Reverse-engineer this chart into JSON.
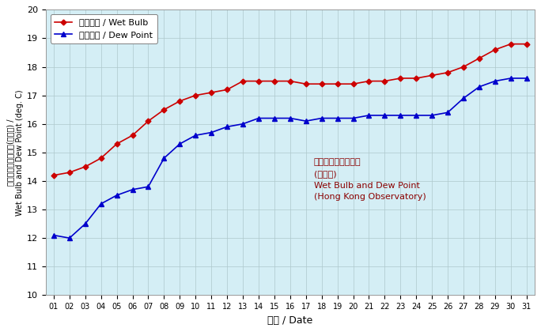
{
  "days": [
    1,
    2,
    3,
    4,
    5,
    6,
    7,
    8,
    9,
    10,
    11,
    12,
    13,
    14,
    15,
    16,
    17,
    18,
    19,
    20,
    21,
    22,
    23,
    24,
    25,
    26,
    27,
    28,
    29,
    30,
    31
  ],
  "wet_bulb": [
    14.2,
    14.3,
    14.5,
    14.8,
    15.3,
    15.6,
    16.1,
    16.5,
    16.8,
    17.0,
    17.1,
    17.2,
    17.5,
    17.5,
    17.5,
    17.5,
    17.4,
    17.4,
    17.4,
    17.4,
    17.5,
    17.5,
    17.6,
    17.6,
    17.7,
    17.8,
    18.0,
    18.3,
    18.6,
    18.8,
    18.8
  ],
  "dew_point": [
    12.1,
    12.0,
    12.5,
    13.2,
    13.5,
    13.7,
    13.8,
    14.8,
    15.3,
    15.6,
    15.7,
    15.9,
    16.0,
    16.2,
    16.2,
    16.2,
    16.1,
    16.2,
    16.2,
    16.2,
    16.3,
    16.3,
    16.3,
    16.3,
    16.3,
    16.4,
    16.9,
    17.3,
    17.5,
    17.6,
    17.6
  ],
  "wet_bulb_color": "#cc0000",
  "dew_point_color": "#0000cc",
  "plot_bg_color": "#d4eef5",
  "outer_bg_color": "#ffffff",
  "grid_color": "#aec8cc",
  "annotation_color": "#8b0000",
  "ylim_min": 10.0,
  "ylim_max": 20.0,
  "yticks": [
    10.0,
    11.0,
    12.0,
    13.0,
    14.0,
    15.0,
    16.0,
    17.0,
    18.0,
    19.0,
    20.0
  ]
}
